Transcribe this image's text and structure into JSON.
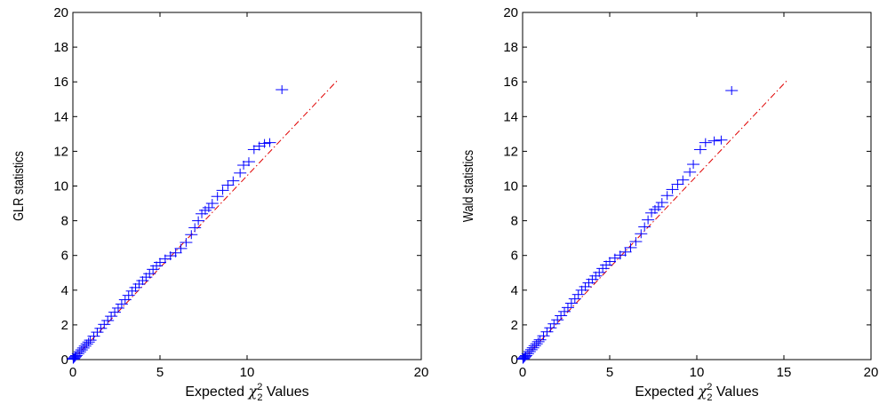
{
  "chart_data": [
    {
      "type": "scatter",
      "xlabel": "Expected χ2 Values",
      "xlabel_main": "Expected ",
      "xlabel_symbol": "χ",
      "xlabel_sup": "2",
      "xlabel_sub": "2",
      "xlabel_tail": " Values",
      "ylabel": "GLR statistics",
      "xlim": [
        0,
        20
      ],
      "ylim": [
        0,
        20
      ],
      "xticks": [
        0,
        5,
        10,
        20
      ],
      "yticks": [
        0,
        2,
        4,
        6,
        8,
        10,
        12,
        14,
        16,
        18,
        20
      ],
      "grid": false,
      "marker": "+",
      "marker_color": "#0000ff",
      "reference_line": {
        "x": [
          0,
          15.2
        ],
        "y": [
          0,
          16.1
        ],
        "color": "#e00000",
        "style": "dash-dot"
      },
      "series": [
        {
          "points": [
            [
              0.02,
              0.02
            ],
            [
              0.05,
              0.06
            ],
            [
              0.1,
              0.11
            ],
            [
              0.15,
              0.17
            ],
            [
              0.2,
              0.23
            ],
            [
              0.3,
              0.34
            ],
            [
              0.4,
              0.45
            ],
            [
              0.5,
              0.56
            ],
            [
              0.6,
              0.67
            ],
            [
              0.7,
              0.78
            ],
            [
              0.8,
              0.9
            ],
            [
              0.9,
              1.01
            ],
            [
              1.0,
              1.12
            ],
            [
              1.2,
              1.35
            ],
            [
              1.4,
              1.58
            ],
            [
              1.6,
              1.8
            ],
            [
              1.8,
              2.03
            ],
            [
              2.0,
              2.25
            ],
            [
              2.2,
              2.5
            ],
            [
              2.4,
              2.73
            ],
            [
              2.6,
              2.97
            ],
            [
              2.8,
              3.2
            ],
            [
              3.0,
              3.45
            ],
            [
              3.2,
              3.7
            ],
            [
              3.4,
              3.95
            ],
            [
              3.6,
              4.15
            ],
            [
              3.8,
              4.35
            ],
            [
              4.0,
              4.55
            ],
            [
              4.2,
              4.75
            ],
            [
              4.4,
              4.95
            ],
            [
              4.6,
              5.2
            ],
            [
              4.8,
              5.4
            ],
            [
              5.0,
              5.6
            ],
            [
              5.3,
              5.8
            ],
            [
              5.6,
              5.98
            ],
            [
              5.9,
              6.15
            ],
            [
              6.2,
              6.4
            ],
            [
              6.5,
              6.75
            ],
            [
              6.8,
              7.2
            ],
            [
              7.0,
              7.6
            ],
            [
              7.2,
              8.0
            ],
            [
              7.4,
              8.4
            ],
            [
              7.6,
              8.6
            ],
            [
              7.8,
              8.75
            ],
            [
              8.0,
              9.0
            ],
            [
              8.3,
              9.4
            ],
            [
              8.6,
              9.75
            ],
            [
              8.9,
              10.05
            ],
            [
              9.2,
              10.3
            ],
            [
              9.6,
              10.75
            ],
            [
              9.8,
              11.2
            ],
            [
              10.1,
              11.4
            ],
            [
              10.4,
              12.1
            ],
            [
              10.7,
              12.3
            ],
            [
              11.0,
              12.45
            ],
            [
              11.3,
              12.5
            ],
            [
              12.0,
              15.55
            ]
          ]
        }
      ]
    },
    {
      "type": "scatter",
      "xlabel": "Expected χ2 Values",
      "xlabel_main": "Expected ",
      "xlabel_symbol": "χ",
      "xlabel_sup": "2",
      "xlabel_sub": "2",
      "xlabel_tail": " Values",
      "ylabel": "Wald statistics",
      "xlim": [
        0,
        20
      ],
      "ylim": [
        0,
        20
      ],
      "xticks": [
        0,
        5,
        10,
        15,
        20
      ],
      "yticks": [
        0,
        2,
        4,
        6,
        8,
        10,
        12,
        14,
        16,
        18,
        20
      ],
      "grid": false,
      "marker": "+",
      "marker_color": "#0000ff",
      "reference_line": {
        "x": [
          0,
          15.2
        ],
        "y": [
          0,
          16.1
        ],
        "color": "#e00000",
        "style": "dash-dot"
      },
      "series": [
        {
          "points": [
            [
              0.02,
              0.02
            ],
            [
              0.05,
              0.06
            ],
            [
              0.1,
              0.11
            ],
            [
              0.15,
              0.17
            ],
            [
              0.2,
              0.23
            ],
            [
              0.3,
              0.34
            ],
            [
              0.4,
              0.46
            ],
            [
              0.5,
              0.57
            ],
            [
              0.6,
              0.68
            ],
            [
              0.7,
              0.8
            ],
            [
              0.8,
              0.91
            ],
            [
              0.9,
              1.03
            ],
            [
              1.0,
              1.14
            ],
            [
              1.2,
              1.37
            ],
            [
              1.4,
              1.6
            ],
            [
              1.6,
              1.83
            ],
            [
              1.8,
              2.06
            ],
            [
              2.0,
              2.29
            ],
            [
              2.2,
              2.53
            ],
            [
              2.4,
              2.77
            ],
            [
              2.6,
              3.0
            ],
            [
              2.8,
              3.25
            ],
            [
              3.0,
              3.5
            ],
            [
              3.2,
              3.75
            ],
            [
              3.4,
              4.0
            ],
            [
              3.6,
              4.2
            ],
            [
              3.8,
              4.42
            ],
            [
              4.0,
              4.62
            ],
            [
              4.2,
              4.82
            ],
            [
              4.4,
              5.02
            ],
            [
              4.6,
              5.25
            ],
            [
              4.8,
              5.45
            ],
            [
              5.0,
              5.65
            ],
            [
              5.3,
              5.85
            ],
            [
              5.6,
              6.02
            ],
            [
              5.9,
              6.2
            ],
            [
              6.2,
              6.45
            ],
            [
              6.5,
              6.8
            ],
            [
              6.8,
              7.25
            ],
            [
              7.0,
              7.65
            ],
            [
              7.2,
              8.05
            ],
            [
              7.4,
              8.45
            ],
            [
              7.6,
              8.65
            ],
            [
              7.8,
              8.8
            ],
            [
              8.0,
              9.05
            ],
            [
              8.3,
              9.45
            ],
            [
              8.6,
              9.8
            ],
            [
              8.9,
              10.1
            ],
            [
              9.2,
              10.35
            ],
            [
              9.6,
              10.8
            ],
            [
              9.8,
              11.25
            ],
            [
              10.2,
              12.1
            ],
            [
              10.5,
              12.5
            ],
            [
              11.0,
              12.6
            ],
            [
              11.4,
              12.65
            ],
            [
              12.0,
              15.5
            ]
          ]
        }
      ]
    }
  ]
}
